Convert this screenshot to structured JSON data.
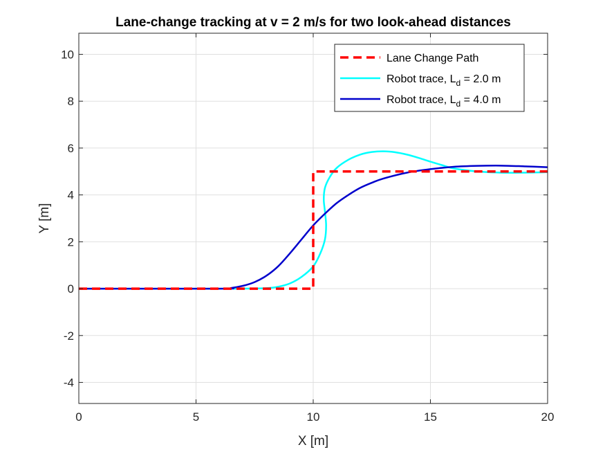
{
  "chart_data": {
    "type": "line",
    "title": "Lane-change tracking at v = 2 m/s for two look-ahead distances",
    "xlabel": "X [m]",
    "ylabel": "Y [m]",
    "xlim": [
      0,
      20
    ],
    "ylim": [
      -4.9,
      10.9
    ],
    "xticks": [
      0,
      5,
      10,
      15,
      20
    ],
    "yticks": [
      -4,
      -2,
      0,
      2,
      4,
      6,
      8,
      10
    ],
    "grid": true,
    "legend_position": "top-right",
    "series": [
      {
        "name": "Lane Change Path",
        "legend_main": "Lane Change Path",
        "legend_sub": "",
        "legend_tail": "",
        "color": "#ff0000",
        "style": "dashed",
        "x": [
          0,
          10,
          10,
          20
        ],
        "y": [
          0,
          0,
          5,
          5
        ]
      },
      {
        "name": "Robot trace, Ld = 2.0 m",
        "legend_main": "Robot trace, L",
        "legend_sub": "d",
        "legend_tail": " = 2.0 m",
        "color": "#00ffff",
        "style": "solid",
        "x": [
          0,
          6,
          7,
          8,
          8.5,
          9,
          9.5,
          10,
          10.3,
          10.5,
          10.55,
          10.5,
          10.45,
          10.5,
          10.7,
          11,
          11.5,
          12,
          12.5,
          13,
          13.5,
          14,
          14.5,
          15,
          15.5,
          16,
          17,
          18,
          19,
          20
        ],
        "y": [
          0,
          0,
          0,
          0.02,
          0.08,
          0.22,
          0.5,
          0.95,
          1.5,
          2.1,
          2.7,
          3.3,
          3.8,
          4.3,
          4.75,
          5.15,
          5.5,
          5.72,
          5.83,
          5.86,
          5.82,
          5.72,
          5.58,
          5.42,
          5.27,
          5.13,
          5.0,
          4.95,
          4.95,
          4.97
        ]
      },
      {
        "name": "Robot trace, Ld = 4.0 m",
        "legend_main": "Robot trace, L",
        "legend_sub": "d",
        "legend_tail": " = 4.0 m",
        "color": "#0000cc",
        "style": "solid",
        "x": [
          0,
          6,
          6.5,
          7,
          7.5,
          8,
          8.5,
          9,
          9.5,
          10,
          10.5,
          11,
          11.5,
          12,
          12.5,
          13,
          14,
          15,
          16,
          17,
          18,
          19,
          20
        ],
        "y": [
          0,
          0,
          0.03,
          0.12,
          0.28,
          0.55,
          0.95,
          1.5,
          2.1,
          2.7,
          3.2,
          3.65,
          4.0,
          4.3,
          4.52,
          4.7,
          4.95,
          5.1,
          5.2,
          5.24,
          5.25,
          5.22,
          5.18
        ]
      }
    ]
  }
}
